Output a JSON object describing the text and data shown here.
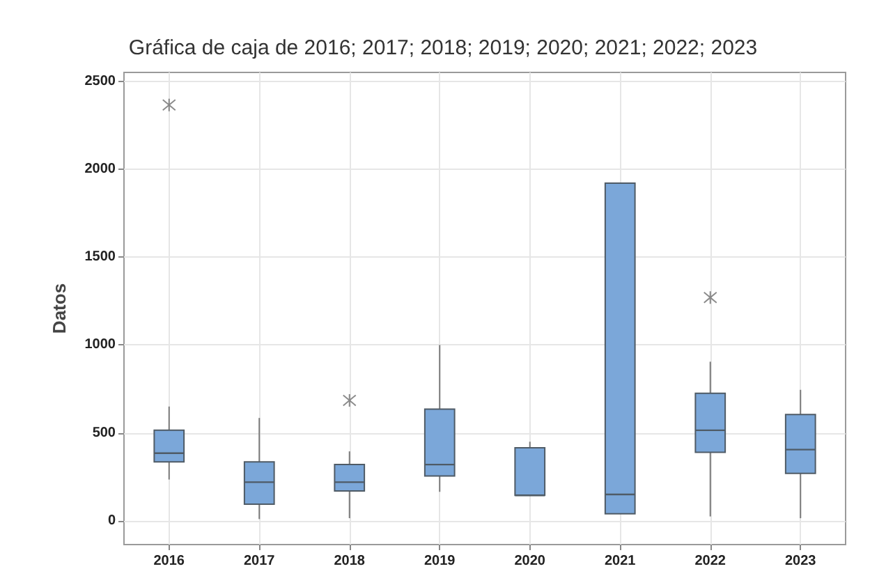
{
  "chart_data": {
    "type": "box",
    "title": "Gráfica de caja de 2016; 2017; 2018; 2019; 2020; 2021; 2022; 2023",
    "ylabel": "Datos",
    "categories": [
      "2016",
      "2017",
      "2018",
      "2019",
      "2020",
      "2021",
      "2022",
      "2023"
    ],
    "boxes": [
      {
        "low": 235,
        "q1": 335,
        "median": 385,
        "q3": 515,
        "high": 650,
        "outliers": [
          2365
        ]
      },
      {
        "low": 10,
        "q1": 95,
        "median": 220,
        "q3": 335,
        "high": 585
      },
      {
        "low": 15,
        "q1": 170,
        "median": 220,
        "q3": 320,
        "high": 395,
        "outliers": [
          685
        ]
      },
      {
        "low": 165,
        "q1": 255,
        "median": 320,
        "q3": 635,
        "high": 1000
      },
      {
        "low": 145,
        "q1": 145,
        "median": 145,
        "q3": 415,
        "high": 450
      },
      {
        "low": 40,
        "q1": 40,
        "median": 150,
        "q3": 1920,
        "high": 1920
      },
      {
        "low": 25,
        "q1": 390,
        "median": 515,
        "q3": 725,
        "high": 905,
        "outliers": [
          1270
        ]
      },
      {
        "low": 15,
        "q1": 270,
        "median": 405,
        "q3": 605,
        "high": 745
      }
    ],
    "color": "#7ba7d9",
    "ylim": [
      -135,
      2550
    ],
    "yticks": [
      0,
      500,
      1000,
      1500,
      2000,
      2500
    ],
    "grid": true
  }
}
